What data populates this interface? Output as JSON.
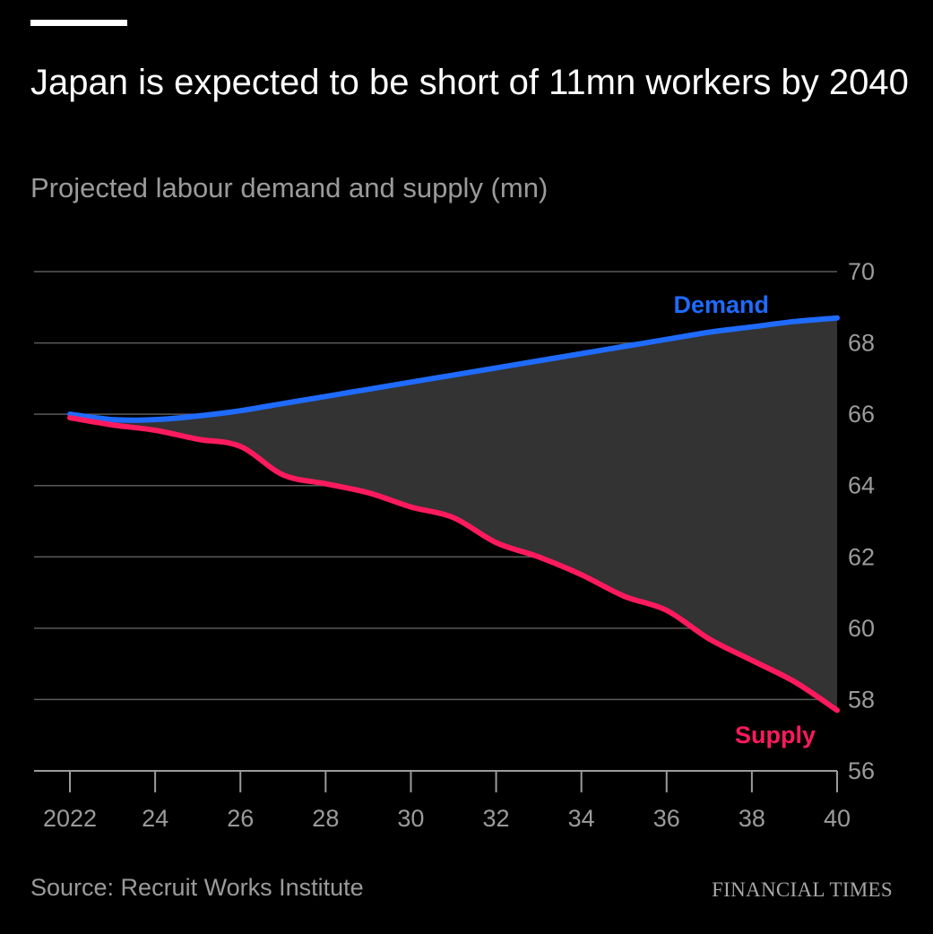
{
  "header": {
    "title": "Japan is expected to be short of 11mn workers by 2040",
    "subtitle": "Projected labour demand and supply (mn)"
  },
  "footer": {
    "source": "Source: Recruit Works Institute",
    "brand": "FINANCIAL TIMES"
  },
  "colors": {
    "background": "#000000",
    "demand": "#1f6bff",
    "supply": "#ff1a5e",
    "gap_fill": "#333333",
    "grid": "#5a5a5a",
    "axis": "#9b9b9b",
    "tick_label": "#9b9b9b"
  },
  "chart_data": {
    "type": "line",
    "title": "Japan is expected to be short of 11mn workers by 2040",
    "subtitle": "Projected labour demand and supply (mn)",
    "xlabel": "",
    "ylabel": "",
    "xlim": [
      2022,
      2040
    ],
    "ylim": [
      56,
      70
    ],
    "x_ticks": [
      2022,
      2024,
      2026,
      2028,
      2030,
      2032,
      2034,
      2036,
      2038,
      2040
    ],
    "x_tick_labels": [
      "2022",
      "24",
      "26",
      "28",
      "30",
      "32",
      "34",
      "36",
      "38",
      "40"
    ],
    "y_ticks": [
      56,
      58,
      60,
      62,
      64,
      66,
      68,
      70
    ],
    "y_tick_labels": [
      "56",
      "58",
      "60",
      "62",
      "64",
      "66",
      "68",
      "70"
    ],
    "y_axis_side": "right",
    "grid": true,
    "gap_shaded": true,
    "x": [
      2022,
      2023,
      2024,
      2025,
      2026,
      2027,
      2028,
      2029,
      2030,
      2031,
      2032,
      2033,
      2034,
      2035,
      2036,
      2037,
      2038,
      2039,
      2040
    ],
    "series": [
      {
        "name": "Demand",
        "values": [
          66.0,
          65.85,
          65.85,
          65.95,
          66.1,
          66.3,
          66.5,
          66.7,
          66.9,
          67.1,
          67.3,
          67.5,
          67.7,
          67.9,
          68.1,
          68.3,
          68.45,
          68.6,
          68.7
        ]
      },
      {
        "name": "Supply",
        "values": [
          65.9,
          65.7,
          65.55,
          65.3,
          65.1,
          64.3,
          64.05,
          63.8,
          63.4,
          63.1,
          62.4,
          62.0,
          61.5,
          60.9,
          60.5,
          59.7,
          59.1,
          58.5,
          57.7
        ]
      }
    ]
  }
}
